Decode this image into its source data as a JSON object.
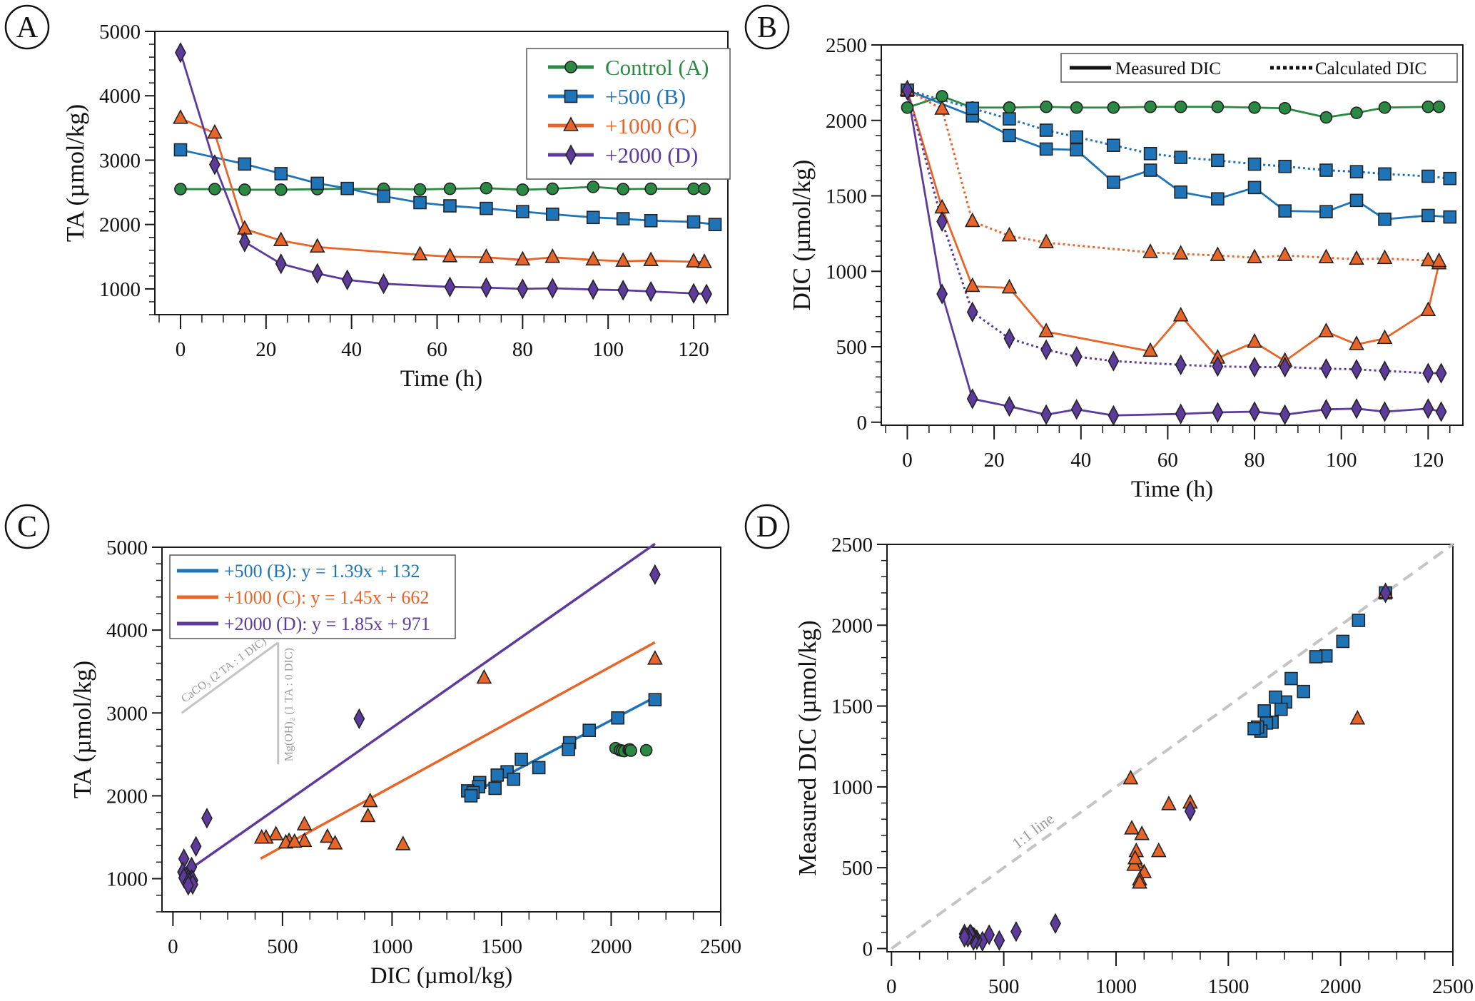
{
  "figure": {
    "colors": {
      "control": "#2a8a44",
      "b500": "#1f74b8",
      "c1000": "#e8652a",
      "d2000": "#5c3b9c",
      "grey": "#c4c4c4",
      "axis": "#1a1a1a"
    }
  },
  "chart_data": [
    {
      "panel": "A",
      "type": "line",
      "panel_label": "A",
      "xlabel": "Time (h)",
      "ylabel": "TA (µmol/kg)",
      "xlim": [
        -6,
        128
      ],
      "ylim": [
        600,
        5000
      ],
      "xticks": [
        0,
        20,
        40,
        60,
        80,
        100,
        120
      ],
      "yticks": [
        1000,
        2000,
        3000,
        4000,
        5000
      ],
      "legend": {
        "placement": "top-right",
        "entries": [
          {
            "label": "Control (A)",
            "series": "control"
          },
          {
            "label": "+500 (B)",
            "series": "b500"
          },
          {
            "label": "+1000 (C)",
            "series": "c1000"
          },
          {
            "label": "+2000 (D)",
            "series": "d2000"
          }
        ]
      },
      "series": [
        {
          "key": "control",
          "name": "Control (A)",
          "marker": "circle",
          "x": [
            0,
            8,
            15,
            23.5,
            32,
            39,
            47.5,
            56,
            63,
            71.5,
            80,
            87,
            96.5,
            103.5,
            110,
            120,
            122.5
          ],
          "y": [
            2550,
            2550,
            2540,
            2540,
            2550,
            2555,
            2555,
            2545,
            2555,
            2565,
            2540,
            2555,
            2585,
            2550,
            2555,
            2555,
            2555
          ]
        },
        {
          "key": "b500",
          "name": "+500 (B)",
          "marker": "square",
          "x": [
            0,
            15,
            23.5,
            32,
            39,
            47.5,
            56,
            63,
            71.5,
            80,
            87,
            96.5,
            103.5,
            110,
            120,
            125
          ],
          "y": [
            3160,
            2940,
            2790,
            2640,
            2560,
            2440,
            2340,
            2290,
            2250,
            2200,
            2160,
            2110,
            2090,
            2060,
            2040,
            2000
          ]
        },
        {
          "key": "c1000",
          "name": "+1000 (C)",
          "marker": "triangle",
          "x": [
            0,
            8,
            15,
            23.5,
            32,
            56,
            63,
            71.5,
            80,
            87,
            96.5,
            103.5,
            110,
            120,
            122.5
          ],
          "y": [
            3650,
            3420,
            1930,
            1750,
            1650,
            1530,
            1500,
            1490,
            1450,
            1490,
            1450,
            1430,
            1440,
            1420,
            1410
          ]
        },
        {
          "key": "d2000",
          "name": "+2000 (D)",
          "marker": "diamond",
          "x": [
            0,
            8,
            15,
            23.5,
            32,
            39,
            47.5,
            63,
            71.5,
            80,
            87,
            96.5,
            103.5,
            110,
            120,
            123
          ],
          "y": [
            4670,
            2930,
            1730,
            1390,
            1240,
            1140,
            1080,
            1030,
            1020,
            1000,
            1010,
            990,
            980,
            960,
            930,
            920
          ]
        }
      ]
    },
    {
      "panel": "B",
      "type": "line",
      "panel_label": "B",
      "xlabel": "Time (h)",
      "ylabel": "DIC (µmol/kg)",
      "xlim": [
        -6,
        128
      ],
      "ylim": [
        -20,
        2500
      ],
      "xticks": [
        0,
        20,
        40,
        60,
        80,
        100,
        120
      ],
      "yticks": [
        0,
        500,
        1000,
        1500,
        2000,
        2500
      ],
      "legend": {
        "placement": "top-right",
        "entries": [
          {
            "label": "Measured DIC",
            "style": "solid"
          },
          {
            "label": "Calculated DIC",
            "style": "dotted"
          }
        ]
      },
      "series": [
        {
          "key": "control",
          "name": "Control (A) measured",
          "style": "solid",
          "marker": "circle",
          "x": [
            0,
            8,
            15,
            23.5,
            32,
            39,
            47.5,
            56,
            63,
            71.5,
            80,
            87,
            96.5,
            103.5,
            110,
            120,
            122.5
          ],
          "y": [
            2085,
            2160,
            2085,
            2085,
            2090,
            2085,
            2085,
            2090,
            2090,
            2090,
            2085,
            2080,
            2020,
            2050,
            2085,
            2090,
            2090
          ]
        },
        {
          "key": "b500",
          "name": "+500 (B) measured",
          "style": "solid",
          "marker": "square",
          "x": [
            0,
            15,
            23.5,
            32,
            39,
            47.5,
            56,
            63,
            71.5,
            80,
            87,
            96.5,
            103.5,
            110,
            120,
            125
          ],
          "y": [
            2200,
            2030,
            1900,
            1810,
            1805,
            1590,
            1670,
            1525,
            1480,
            1555,
            1400,
            1395,
            1470,
            1345,
            1370,
            1360
          ]
        },
        {
          "key": "b500",
          "name": "+500 (B) calculated",
          "style": "dotted",
          "marker": "square",
          "x": [
            0,
            15,
            23.5,
            32,
            39,
            47.5,
            56,
            63,
            71.5,
            80,
            87,
            96.5,
            103.5,
            110,
            120,
            125
          ],
          "y": [
            2200,
            2080,
            2010,
            1935,
            1890,
            1835,
            1780,
            1755,
            1735,
            1710,
            1695,
            1670,
            1660,
            1645,
            1630,
            1615
          ]
        },
        {
          "key": "c1000",
          "name": "+1000 (C) measured",
          "style": "solid",
          "marker": "triangle",
          "x": [
            0,
            8,
            15,
            23.5,
            32,
            56,
            63,
            71.5,
            80,
            87,
            96.5,
            103.5,
            110,
            120,
            122.5
          ],
          "y": [
            2200,
            1420,
            900,
            890,
            600,
            470,
            705,
            425,
            530,
            405,
            600,
            515,
            555,
            740,
            1050
          ]
        },
        {
          "key": "c1000",
          "name": "+1000 (C) calculated",
          "style": "dotted",
          "marker": "triangle",
          "x": [
            0,
            8,
            15,
            23.5,
            32,
            56,
            63,
            71.5,
            80,
            87,
            96.5,
            103.5,
            110,
            120,
            122.5
          ],
          "y": [
            2200,
            2075,
            1330,
            1235,
            1190,
            1125,
            1115,
            1105,
            1090,
            1105,
            1090,
            1080,
            1085,
            1070,
            1065
          ]
        },
        {
          "key": "d2000",
          "name": "+2000 (D) measured",
          "style": "solid",
          "marker": "diamond",
          "x": [
            0,
            8,
            15,
            23.5,
            32,
            39,
            47.5,
            63,
            71.5,
            80,
            87,
            96.5,
            103.5,
            110,
            120,
            123
          ],
          "y": [
            2200,
            850,
            155,
            105,
            50,
            85,
            45,
            55,
            65,
            70,
            50,
            85,
            90,
            70,
            90,
            70
          ]
        },
        {
          "key": "d2000",
          "name": "+2000 (D) calculated",
          "style": "dotted",
          "marker": "diamond",
          "x": [
            0,
            8,
            15,
            23.5,
            32,
            39,
            47.5,
            63,
            71.5,
            80,
            87,
            96.5,
            103.5,
            110,
            120,
            123
          ],
          "y": [
            2200,
            1330,
            730,
            555,
            480,
            435,
            405,
            380,
            370,
            365,
            365,
            355,
            350,
            340,
            325,
            325
          ]
        }
      ]
    },
    {
      "panel": "C",
      "type": "scatter",
      "panel_label": "C",
      "xlabel": "DIC (µmol/kg)",
      "ylabel": "TA (µmol/kg)",
      "xlim": [
        -50,
        2500
      ],
      "ylim": [
        600,
        5000
      ],
      "xticks": [
        0,
        500,
        1000,
        1500,
        2000,
        2500
      ],
      "yticks": [
        1000,
        2000,
        3000,
        4000,
        5000
      ],
      "legend": {
        "placement": "top-left",
        "entries": [
          {
            "label": "+500 (B): y = 1.39x + 132",
            "series": "b500"
          },
          {
            "label": "+1000 (C): y = 1.45x + 662",
            "series": "c1000"
          },
          {
            "label": "+2000 (D): y = 1.85x + 971",
            "series": "d2000"
          }
        ]
      },
      "fits": [
        {
          "key": "b500",
          "slope": 1.39,
          "intercept": 132,
          "x_range": [
            1380,
            2200
          ]
        },
        {
          "key": "c1000",
          "slope": 1.45,
          "intercept": 662,
          "x_range": [
            400,
            2200
          ]
        },
        {
          "key": "d2000",
          "slope": 1.85,
          "intercept": 971,
          "x_range": [
            80,
            2200
          ]
        }
      ],
      "annotations": [
        {
          "text": "CaCO₃ (2 TA : 1 DIC)",
          "from": [
            40,
            3000
          ],
          "to": [
            480,
            3850
          ]
        },
        {
          "text": "Mg(OH)₂ (1 TA : 0 DIC)",
          "from": [
            480,
            3850
          ],
          "to": [
            480,
            2380
          ]
        }
      ],
      "series": [
        {
          "key": "control",
          "marker": "circle",
          "x": [
            2020,
            2040,
            2050,
            2060,
            2080,
            2085,
            2085,
            2090,
            2160
          ],
          "y": [
            2575,
            2550,
            2545,
            2540,
            2555,
            2550,
            2560,
            2545,
            2550
          ]
        },
        {
          "key": "b500",
          "marker": "square",
          "x": [
            2200,
            2030,
            1900,
            1810,
            1805,
            1590,
            1670,
            1525,
            1480,
            1555,
            1400,
            1395,
            1470,
            1345,
            1370,
            1360
          ],
          "y": [
            3160,
            2940,
            2790,
            2640,
            2560,
            2440,
            2340,
            2290,
            2250,
            2200,
            2160,
            2110,
            2090,
            2060,
            2040,
            2000
          ]
        },
        {
          "key": "c1000",
          "marker": "triangle",
          "x": [
            2200,
            1420,
            900,
            890,
            600,
            470,
            705,
            425,
            530,
            405,
            600,
            515,
            555,
            740,
            1050
          ],
          "y": [
            3650,
            3420,
            1930,
            1750,
            1650,
            1530,
            1500,
            1490,
            1450,
            1490,
            1450,
            1430,
            1440,
            1420,
            1410
          ]
        },
        {
          "key": "d2000",
          "marker": "diamond",
          "x": [
            2200,
            850,
            155,
            105,
            50,
            85,
            45,
            55,
            65,
            70,
            50,
            85,
            90,
            70,
            90,
            70
          ],
          "y": [
            4670,
            2930,
            1730,
            1390,
            1240,
            1140,
            1080,
            1030,
            1020,
            1000,
            1010,
            990,
            980,
            960,
            930,
            920
          ]
        }
      ]
    },
    {
      "panel": "D",
      "type": "scatter",
      "panel_label": "D",
      "xlabel": "Calculated DIC (µmol/kg)",
      "ylabel": "Measured DIC (µmol/kg)",
      "xlim": [
        -20,
        2500
      ],
      "ylim": [
        -20,
        2500
      ],
      "xticks": [
        0,
        500,
        1000,
        1500,
        2000,
        2500
      ],
      "yticks": [
        0,
        500,
        1000,
        1500,
        2000,
        2500
      ],
      "reference_line": {
        "label": "1:1 line",
        "slope": 1,
        "intercept": 0
      },
      "series": [
        {
          "key": "b500",
          "marker": "square",
          "x": [
            2200,
            2080,
            2010,
            1935,
            1890,
            1835,
            1780,
            1755,
            1735,
            1710,
            1695,
            1670,
            1660,
            1645,
            1630,
            1615
          ],
          "y": [
            2200,
            2030,
            1900,
            1810,
            1805,
            1590,
            1670,
            1525,
            1480,
            1555,
            1400,
            1395,
            1470,
            1345,
            1370,
            1360
          ]
        },
        {
          "key": "c1000",
          "marker": "triangle",
          "x": [
            2200,
            2075,
            1330,
            1235,
            1190,
            1125,
            1115,
            1105,
            1090,
            1105,
            1090,
            1080,
            1085,
            1070,
            1065
          ],
          "y": [
            2200,
            1420,
            900,
            890,
            600,
            470,
            705,
            425,
            530,
            405,
            600,
            515,
            555,
            740,
            1050
          ]
        },
        {
          "key": "d2000",
          "marker": "diamond",
          "x": [
            2200,
            1330,
            730,
            555,
            480,
            435,
            405,
            380,
            370,
            365,
            365,
            355,
            350,
            340,
            325,
            325
          ],
          "y": [
            2200,
            850,
            155,
            105,
            50,
            85,
            45,
            55,
            65,
            70,
            50,
            85,
            90,
            70,
            90,
            70
          ]
        }
      ]
    }
  ]
}
